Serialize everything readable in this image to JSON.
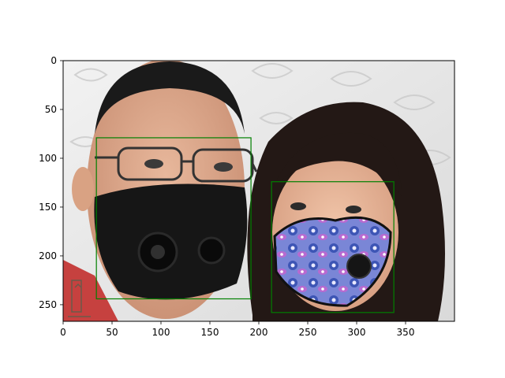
{
  "chart_data": {
    "type": "image",
    "image_size": {
      "width": 400,
      "height": 267
    },
    "xlim": [
      0,
      400
    ],
    "ylim": [
      267,
      0
    ],
    "x_ticks": [
      0,
      50,
      100,
      150,
      200,
      250,
      300,
      350
    ],
    "y_ticks": [
      0,
      50,
      100,
      150,
      200,
      250
    ],
    "grid": false,
    "photo": {
      "subjects": [
        "man",
        "woman"
      ],
      "background_color": "#e6e6e6",
      "watermark_icon": "watermark-icon"
    },
    "boxes": [
      {
        "x0": 34,
        "y0": 79,
        "x1": 192,
        "y1": 244,
        "color": "#008000"
      },
      {
        "x0": 213,
        "y0": 124,
        "x1": 338,
        "y1": 258,
        "color": "#008000"
      }
    ]
  }
}
